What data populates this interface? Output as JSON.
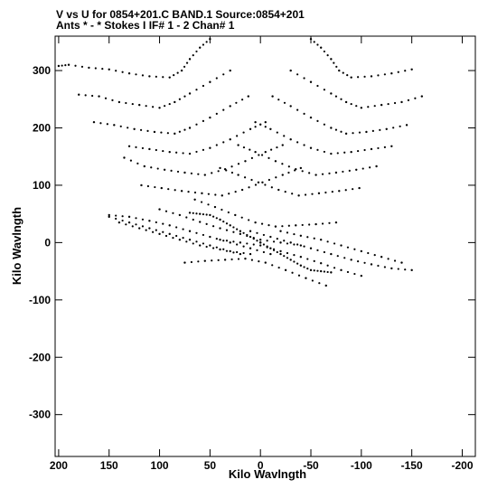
{
  "header": {
    "line1": "V vs U for 0854+201.C BAND.1   Source:0854+201",
    "line2": "Ants * - *     Stokes I  IF# 1 - 2  Chan# 1"
  },
  "chart_data": {
    "type": "scatter",
    "xlabel": "Kilo Wavlngth",
    "ylabel": "Kilo Wavlngth",
    "xlim": [
      203.5,
      -213
    ],
    "ylim": [
      -373,
      360
    ],
    "x_ticks": [
      200,
      150,
      100,
      50,
      0,
      -50,
      -100,
      -150,
      -200
    ],
    "x_tick_labels": [
      "200",
      "150",
      "100",
      "50",
      "0",
      "-50",
      "-100",
      "-150",
      "-200"
    ],
    "y_ticks": [
      300,
      200,
      100,
      0,
      -100,
      -200,
      -300
    ],
    "y_tick_labels": [
      "300",
      "200",
      "100",
      "0",
      "-100",
      "-200",
      "-300"
    ],
    "tracks": [
      {
        "name": "",
        "points": [
          [
            -50,
            355
          ],
          [
            -60,
            340
          ],
          [
            -70,
            320
          ],
          [
            -78,
            300
          ],
          [
            -90,
            288
          ],
          [
            -110,
            290
          ],
          [
            -130,
            295
          ],
          [
            -150,
            302
          ]
        ]
      },
      {
        "name": "",
        "points": [
          [
            -30,
            300
          ],
          [
            -50,
            280
          ],
          [
            -70,
            260
          ],
          [
            -85,
            245
          ],
          [
            -100,
            235
          ],
          [
            -120,
            240
          ],
          [
            -140,
            245
          ],
          [
            -160,
            255
          ]
        ]
      },
      {
        "name": "",
        "points": [
          [
            -12,
            255
          ],
          [
            -30,
            238
          ],
          [
            -50,
            218
          ],
          [
            -70,
            200
          ],
          [
            -85,
            190
          ],
          [
            -105,
            193
          ],
          [
            -125,
            198
          ],
          [
            -145,
            205
          ]
        ]
      },
      {
        "name": "",
        "points": [
          [
            5,
            210
          ],
          [
            -10,
            198
          ],
          [
            -30,
            180
          ],
          [
            -50,
            165
          ],
          [
            -70,
            155
          ],
          [
            -90,
            158
          ],
          [
            -110,
            163
          ],
          [
            -130,
            168
          ]
        ]
      },
      {
        "name": "",
        "points": [
          [
            22,
            170
          ],
          [
            5,
            158
          ],
          [
            -15,
            142
          ],
          [
            -35,
            128
          ],
          [
            -55,
            118
          ],
          [
            -75,
            122
          ],
          [
            -95,
            127
          ],
          [
            -115,
            133
          ]
        ]
      },
      {
        "name": "",
        "points": [
          [
            40,
            130
          ],
          [
            22,
            118
          ],
          [
            2,
            105
          ],
          [
            -18,
            92
          ],
          [
            -38,
            82
          ],
          [
            -58,
            86
          ],
          [
            -78,
            90
          ],
          [
            -98,
            95
          ]
        ]
      },
      {
        "name": "",
        "points": [
          [
            65,
            75
          ],
          [
            45,
            62
          ],
          [
            25,
            48
          ],
          [
            5,
            35
          ],
          [
            -15,
            28
          ],
          [
            -35,
            30
          ],
          [
            -55,
            32
          ],
          [
            -75,
            35
          ]
        ]
      },
      {
        "name": "",
        "points": [
          [
            100,
            58
          ],
          [
            80,
            48
          ],
          [
            60,
            36
          ],
          [
            40,
            25
          ],
          [
            20,
            15
          ],
          [
            0,
            5
          ],
          [
            -20,
            0
          ],
          [
            -40,
            -5
          ]
        ]
      },
      {
        "name": "",
        "points": [
          [
            150,
            45
          ],
          [
            130,
            35
          ],
          [
            110,
            25
          ],
          [
            90,
            15
          ],
          [
            70,
            5
          ],
          [
            50,
            -5
          ],
          [
            30,
            -15
          ],
          [
            10,
            -20
          ]
        ]
      },
      {
        "name": "",
        "points": [
          [
            10,
            20
          ],
          [
            -10,
            10
          ],
          [
            -30,
            0
          ],
          [
            -50,
            -10
          ],
          [
            -70,
            -20
          ],
          [
            -90,
            -30
          ],
          [
            -110,
            -38
          ],
          [
            -130,
            -45
          ],
          [
            -150,
            -48
          ]
        ]
      },
      {
        "name": "",
        "points": [
          [
            -20,
            20
          ],
          [
            -40,
            12
          ],
          [
            -60,
            5
          ],
          [
            -80,
            -5
          ],
          [
            -100,
            -15
          ],
          [
            -120,
            -25
          ],
          [
            -140,
            -35
          ]
        ]
      },
      {
        "name": "",
        "points": [
          [
            0,
            0
          ],
          [
            -10,
            -10
          ],
          [
            -20,
            -20
          ],
          [
            -30,
            -30
          ],
          [
            -40,
            -40
          ],
          [
            -50,
            -48
          ],
          [
            -60,
            -50
          ],
          [
            -70,
            -52
          ]
        ]
      },
      {
        "name": "",
        "points": [
          [
            50,
            355
          ],
          [
            60,
            340
          ],
          [
            70,
            320
          ],
          [
            78,
            300
          ],
          [
            90,
            288
          ],
          [
            110,
            290
          ],
          [
            130,
            295
          ],
          [
            150,
            302
          ],
          [
            170,
            305
          ],
          [
            190,
            310
          ],
          [
            200,
            308
          ]
        ]
      },
      {
        "name": "",
        "points": [
          [
            30,
            300
          ],
          [
            50,
            280
          ],
          [
            70,
            260
          ],
          [
            85,
            245
          ],
          [
            100,
            235
          ],
          [
            120,
            240
          ],
          [
            140,
            245
          ],
          [
            160,
            255
          ],
          [
            180,
            258
          ]
        ]
      },
      {
        "name": "",
        "points": [
          [
            12,
            255
          ],
          [
            30,
            238
          ],
          [
            50,
            218
          ],
          [
            70,
            200
          ],
          [
            85,
            190
          ],
          [
            105,
            193
          ],
          [
            125,
            198
          ],
          [
            145,
            205
          ],
          [
            165,
            210
          ]
        ]
      },
      {
        "name": "",
        "points": [
          [
            -5,
            210
          ],
          [
            10,
            198
          ],
          [
            30,
            180
          ],
          [
            50,
            165
          ],
          [
            70,
            155
          ],
          [
            90,
            158
          ],
          [
            110,
            163
          ],
          [
            130,
            168
          ]
        ]
      },
      {
        "name": "",
        "points": [
          [
            -22,
            170
          ],
          [
            -5,
            158
          ],
          [
            15,
            142
          ],
          [
            35,
            128
          ],
          [
            55,
            118
          ],
          [
            75,
            122
          ],
          [
            95,
            127
          ],
          [
            115,
            133
          ],
          [
            135,
            148
          ]
        ]
      },
      {
        "name": "",
        "points": [
          [
            -40,
            130
          ],
          [
            -22,
            118
          ],
          [
            -2,
            105
          ],
          [
            18,
            92
          ],
          [
            38,
            82
          ],
          [
            58,
            86
          ],
          [
            78,
            90
          ],
          [
            98,
            95
          ],
          [
            118,
            100
          ]
        ]
      },
      {
        "name": "",
        "points": [
          [
            -65,
            -75
          ],
          [
            -45,
            -62
          ],
          [
            -25,
            -48
          ],
          [
            -5,
            -35
          ],
          [
            15,
            -28
          ],
          [
            35,
            -30
          ],
          [
            55,
            -32
          ],
          [
            75,
            -35
          ]
        ]
      },
      {
        "name": "",
        "points": [
          [
            -100,
            -58
          ],
          [
            -80,
            -48
          ],
          [
            -60,
            -36
          ],
          [
            -40,
            -25
          ],
          [
            -20,
            -15
          ],
          [
            0,
            -5
          ],
          [
            20,
            0
          ],
          [
            40,
            5
          ]
        ]
      },
      {
        "name": "",
        "points": [
          [
            -10,
            -20
          ],
          [
            10,
            -10
          ],
          [
            30,
            0
          ],
          [
            50,
            10
          ],
          [
            70,
            20
          ],
          [
            90,
            30
          ],
          [
            110,
            38
          ],
          [
            130,
            45
          ],
          [
            150,
            48
          ]
        ]
      },
      {
        "name": "",
        "points": [
          [
            20,
            -20
          ],
          [
            40,
            -12
          ],
          [
            60,
            -5
          ],
          [
            80,
            5
          ],
          [
            100,
            15
          ],
          [
            120,
            25
          ],
          [
            140,
            35
          ]
        ]
      },
      {
        "name": "",
        "points": [
          [
            0,
            0
          ],
          [
            10,
            10
          ],
          [
            20,
            20
          ],
          [
            30,
            30
          ],
          [
            40,
            40
          ],
          [
            50,
            48
          ],
          [
            60,
            50
          ],
          [
            70,
            52
          ]
        ]
      }
    ]
  }
}
